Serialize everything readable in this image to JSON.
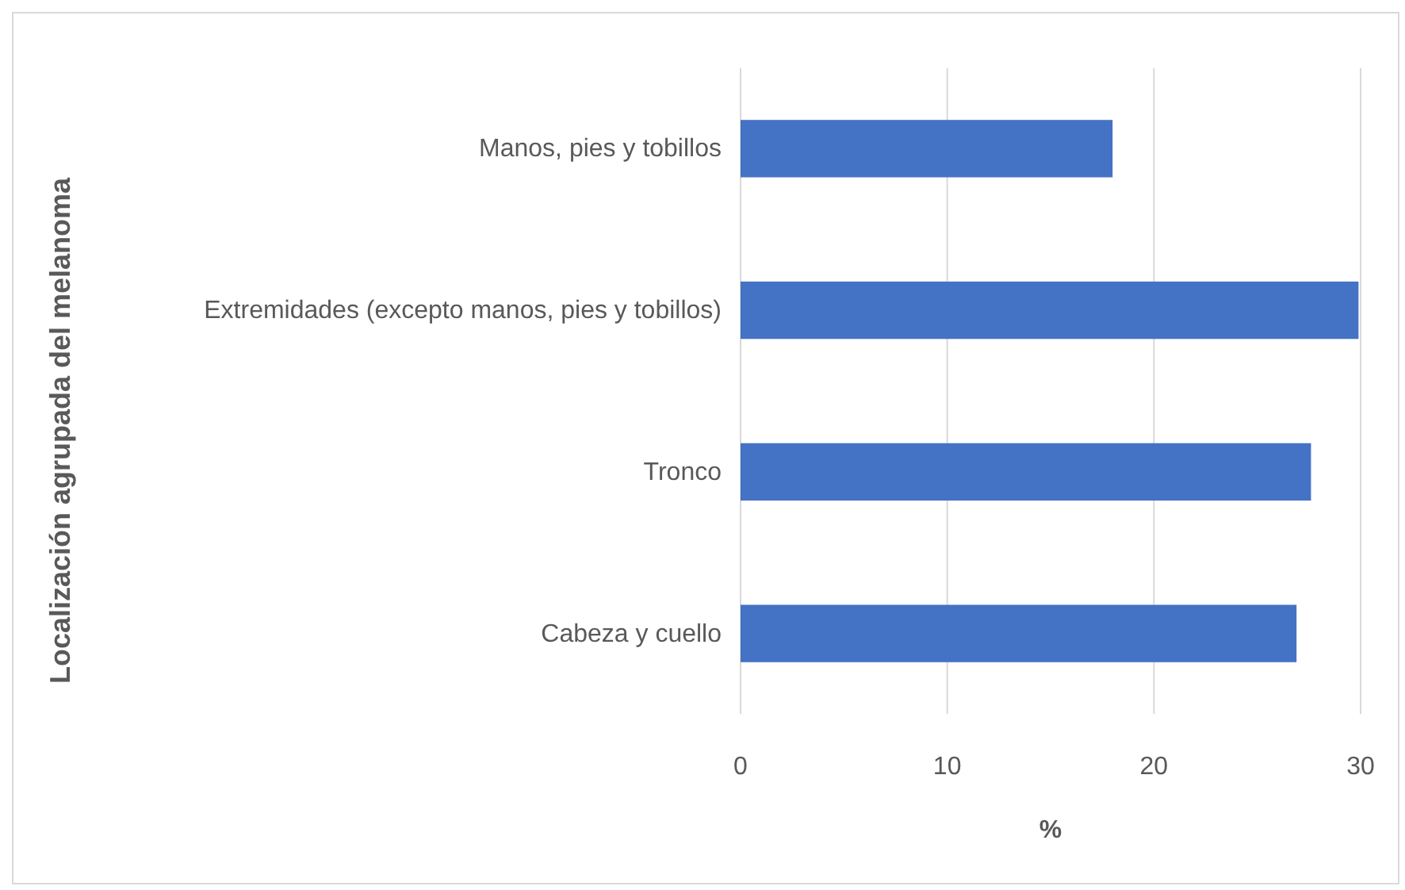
{
  "chart_data": {
    "type": "bar",
    "orientation": "horizontal",
    "xlabel": "%",
    "ylabel": "Localización agrupada del melanoma",
    "categories": [
      "Manos, pies y tobillos",
      "Extremidades (excepto manos, pies y tobillos)",
      "Tronco",
      "Cabeza y cuello"
    ],
    "values": [
      18.0,
      29.9,
      27.6,
      26.9
    ],
    "color": "#4472c4",
    "xlim": [
      0,
      30
    ],
    "xticks": [
      0,
      10,
      20,
      30
    ],
    "grid": "x"
  }
}
